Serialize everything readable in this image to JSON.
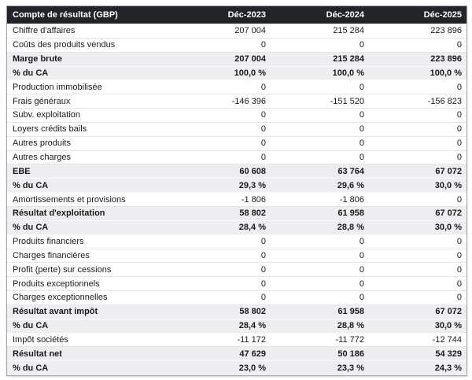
{
  "table": {
    "header": {
      "label": "Compte de résultat (GBP)",
      "columns": [
        "Déc-2023",
        "Déc-2024",
        "Déc-2025"
      ]
    },
    "rows": [
      {
        "label": "Chiffre d'affaires",
        "values": [
          "207 004",
          "215 284",
          "223 896"
        ],
        "style": "normal"
      },
      {
        "label": "Coûts des produits vendus",
        "values": [
          "0",
          "0",
          "0"
        ],
        "style": "normal"
      },
      {
        "label": "Marge brute",
        "values": [
          "207 004",
          "215 284",
          "223 896"
        ],
        "style": "total"
      },
      {
        "label": "% du CA",
        "values": [
          "100,0 %",
          "100,0 %",
          "100,0 %"
        ],
        "style": "total"
      },
      {
        "label": "Production immobilisée",
        "values": [
          "0",
          "0",
          "0"
        ],
        "style": "normal"
      },
      {
        "label": "Frais généraux",
        "values": [
          "-146 396",
          "-151 520",
          "-156 823"
        ],
        "style": "normal"
      },
      {
        "label": "Subv. exploitation",
        "values": [
          "0",
          "0",
          "0"
        ],
        "style": "normal"
      },
      {
        "label": "Loyers crédits bails",
        "values": [
          "0",
          "0",
          "0"
        ],
        "style": "normal"
      },
      {
        "label": "Autres produits",
        "values": [
          "0",
          "0",
          "0"
        ],
        "style": "normal"
      },
      {
        "label": "Autres charges",
        "values": [
          "0",
          "0",
          "0"
        ],
        "style": "normal"
      },
      {
        "label": "EBE",
        "values": [
          "60 608",
          "63 764",
          "67 072"
        ],
        "style": "total"
      },
      {
        "label": "% du CA",
        "values": [
          "29,3 %",
          "29,6 %",
          "30,0 %"
        ],
        "style": "total"
      },
      {
        "label": "Amortissements et provisions",
        "values": [
          "-1 806",
          "-1 806",
          "0"
        ],
        "style": "normal"
      },
      {
        "label": "Résultat d'exploitation",
        "values": [
          "58 802",
          "61 958",
          "67 072"
        ],
        "style": "total"
      },
      {
        "label": "% du CA",
        "values": [
          "28,4 %",
          "28,8 %",
          "30,0 %"
        ],
        "style": "total"
      },
      {
        "label": "Produits financiers",
        "values": [
          "0",
          "0",
          "0"
        ],
        "style": "normal"
      },
      {
        "label": "Charges financières",
        "values": [
          "0",
          "0",
          "0"
        ],
        "style": "normal"
      },
      {
        "label": "Profit (perte) sur cessions",
        "values": [
          "0",
          "0",
          "0"
        ],
        "style": "normal"
      },
      {
        "label": "Produits exceptionnels",
        "values": [
          "0",
          "0",
          "0"
        ],
        "style": "normal"
      },
      {
        "label": "Charges exceptionnelles",
        "values": [
          "0",
          "0",
          "0"
        ],
        "style": "normal"
      },
      {
        "label": "Résultat avant impôt",
        "values": [
          "58 802",
          "61 958",
          "67 072"
        ],
        "style": "total"
      },
      {
        "label": "% du CA",
        "values": [
          "28,4 %",
          "28,8 %",
          "30,0 %"
        ],
        "style": "total"
      },
      {
        "label": "Impôt sociétés",
        "values": [
          "-11 172",
          "-11 772",
          "-12 744"
        ],
        "style": "normal"
      },
      {
        "label": "Résultat net",
        "values": [
          "47 629",
          "50 186",
          "54 329"
        ],
        "style": "total"
      },
      {
        "label": "% du CA",
        "values": [
          "23,0 %",
          "23,3 %",
          "24,3 %"
        ],
        "style": "total"
      }
    ],
    "colors": {
      "header_bg": "#212529",
      "header_text": "#ffffff",
      "total_row_bg": "#eceef1",
      "row_border": "#e4e5e8",
      "outer_border": "#a6a6a6",
      "text": "#1a1a1a"
    }
  },
  "chart_data": {
    "type": "table",
    "title": "Compte de résultat (GBP)",
    "columns": [
      "Déc-2023",
      "Déc-2024",
      "Déc-2025"
    ],
    "rows": [
      {
        "label": "Chiffre d'affaires",
        "values": [
          207004,
          215284,
          223896
        ],
        "emphasis": false
      },
      {
        "label": "Coûts des produits vendus",
        "values": [
          0,
          0,
          0
        ],
        "emphasis": false
      },
      {
        "label": "Marge brute",
        "values": [
          207004,
          215284,
          223896
        ],
        "emphasis": true
      },
      {
        "label": "% du CA",
        "values": [
          100.0,
          100.0,
          100.0
        ],
        "unit": "%",
        "emphasis": true
      },
      {
        "label": "Production immobilisée",
        "values": [
          0,
          0,
          0
        ],
        "emphasis": false
      },
      {
        "label": "Frais généraux",
        "values": [
          -146396,
          -151520,
          -156823
        ],
        "emphasis": false
      },
      {
        "label": "Subv. exploitation",
        "values": [
          0,
          0,
          0
        ],
        "emphasis": false
      },
      {
        "label": "Loyers crédits bails",
        "values": [
          0,
          0,
          0
        ],
        "emphasis": false
      },
      {
        "label": "Autres produits",
        "values": [
          0,
          0,
          0
        ],
        "emphasis": false
      },
      {
        "label": "Autres charges",
        "values": [
          0,
          0,
          0
        ],
        "emphasis": false
      },
      {
        "label": "EBE",
        "values": [
          60608,
          63764,
          67072
        ],
        "emphasis": true
      },
      {
        "label": "% du CA",
        "values": [
          29.3,
          29.6,
          30.0
        ],
        "unit": "%",
        "emphasis": true
      },
      {
        "label": "Amortissements et provisions",
        "values": [
          -1806,
          -1806,
          0
        ],
        "emphasis": false
      },
      {
        "label": "Résultat d'exploitation",
        "values": [
          58802,
          61958,
          67072
        ],
        "emphasis": true
      },
      {
        "label": "% du CA",
        "values": [
          28.4,
          28.8,
          30.0
        ],
        "unit": "%",
        "emphasis": true
      },
      {
        "label": "Produits financiers",
        "values": [
          0,
          0,
          0
        ],
        "emphasis": false
      },
      {
        "label": "Charges financières",
        "values": [
          0,
          0,
          0
        ],
        "emphasis": false
      },
      {
        "label": "Profit (perte) sur cessions",
        "values": [
          0,
          0,
          0
        ],
        "emphasis": false
      },
      {
        "label": "Produits exceptionnels",
        "values": [
          0,
          0,
          0
        ],
        "emphasis": false
      },
      {
        "label": "Charges exceptionnelles",
        "values": [
          0,
          0,
          0
        ],
        "emphasis": false
      },
      {
        "label": "Résultat avant impôt",
        "values": [
          58802,
          61958,
          67072
        ],
        "emphasis": true
      },
      {
        "label": "% du CA",
        "values": [
          28.4,
          28.8,
          30.0
        ],
        "unit": "%",
        "emphasis": true
      },
      {
        "label": "Impôt sociétés",
        "values": [
          -11172,
          -11772,
          -12744
        ],
        "emphasis": false
      },
      {
        "label": "Résultat net",
        "values": [
          47629,
          50186,
          54329
        ],
        "emphasis": true
      },
      {
        "label": "% du CA",
        "values": [
          23.0,
          23.3,
          24.3
        ],
        "unit": "%",
        "emphasis": true
      }
    ]
  }
}
